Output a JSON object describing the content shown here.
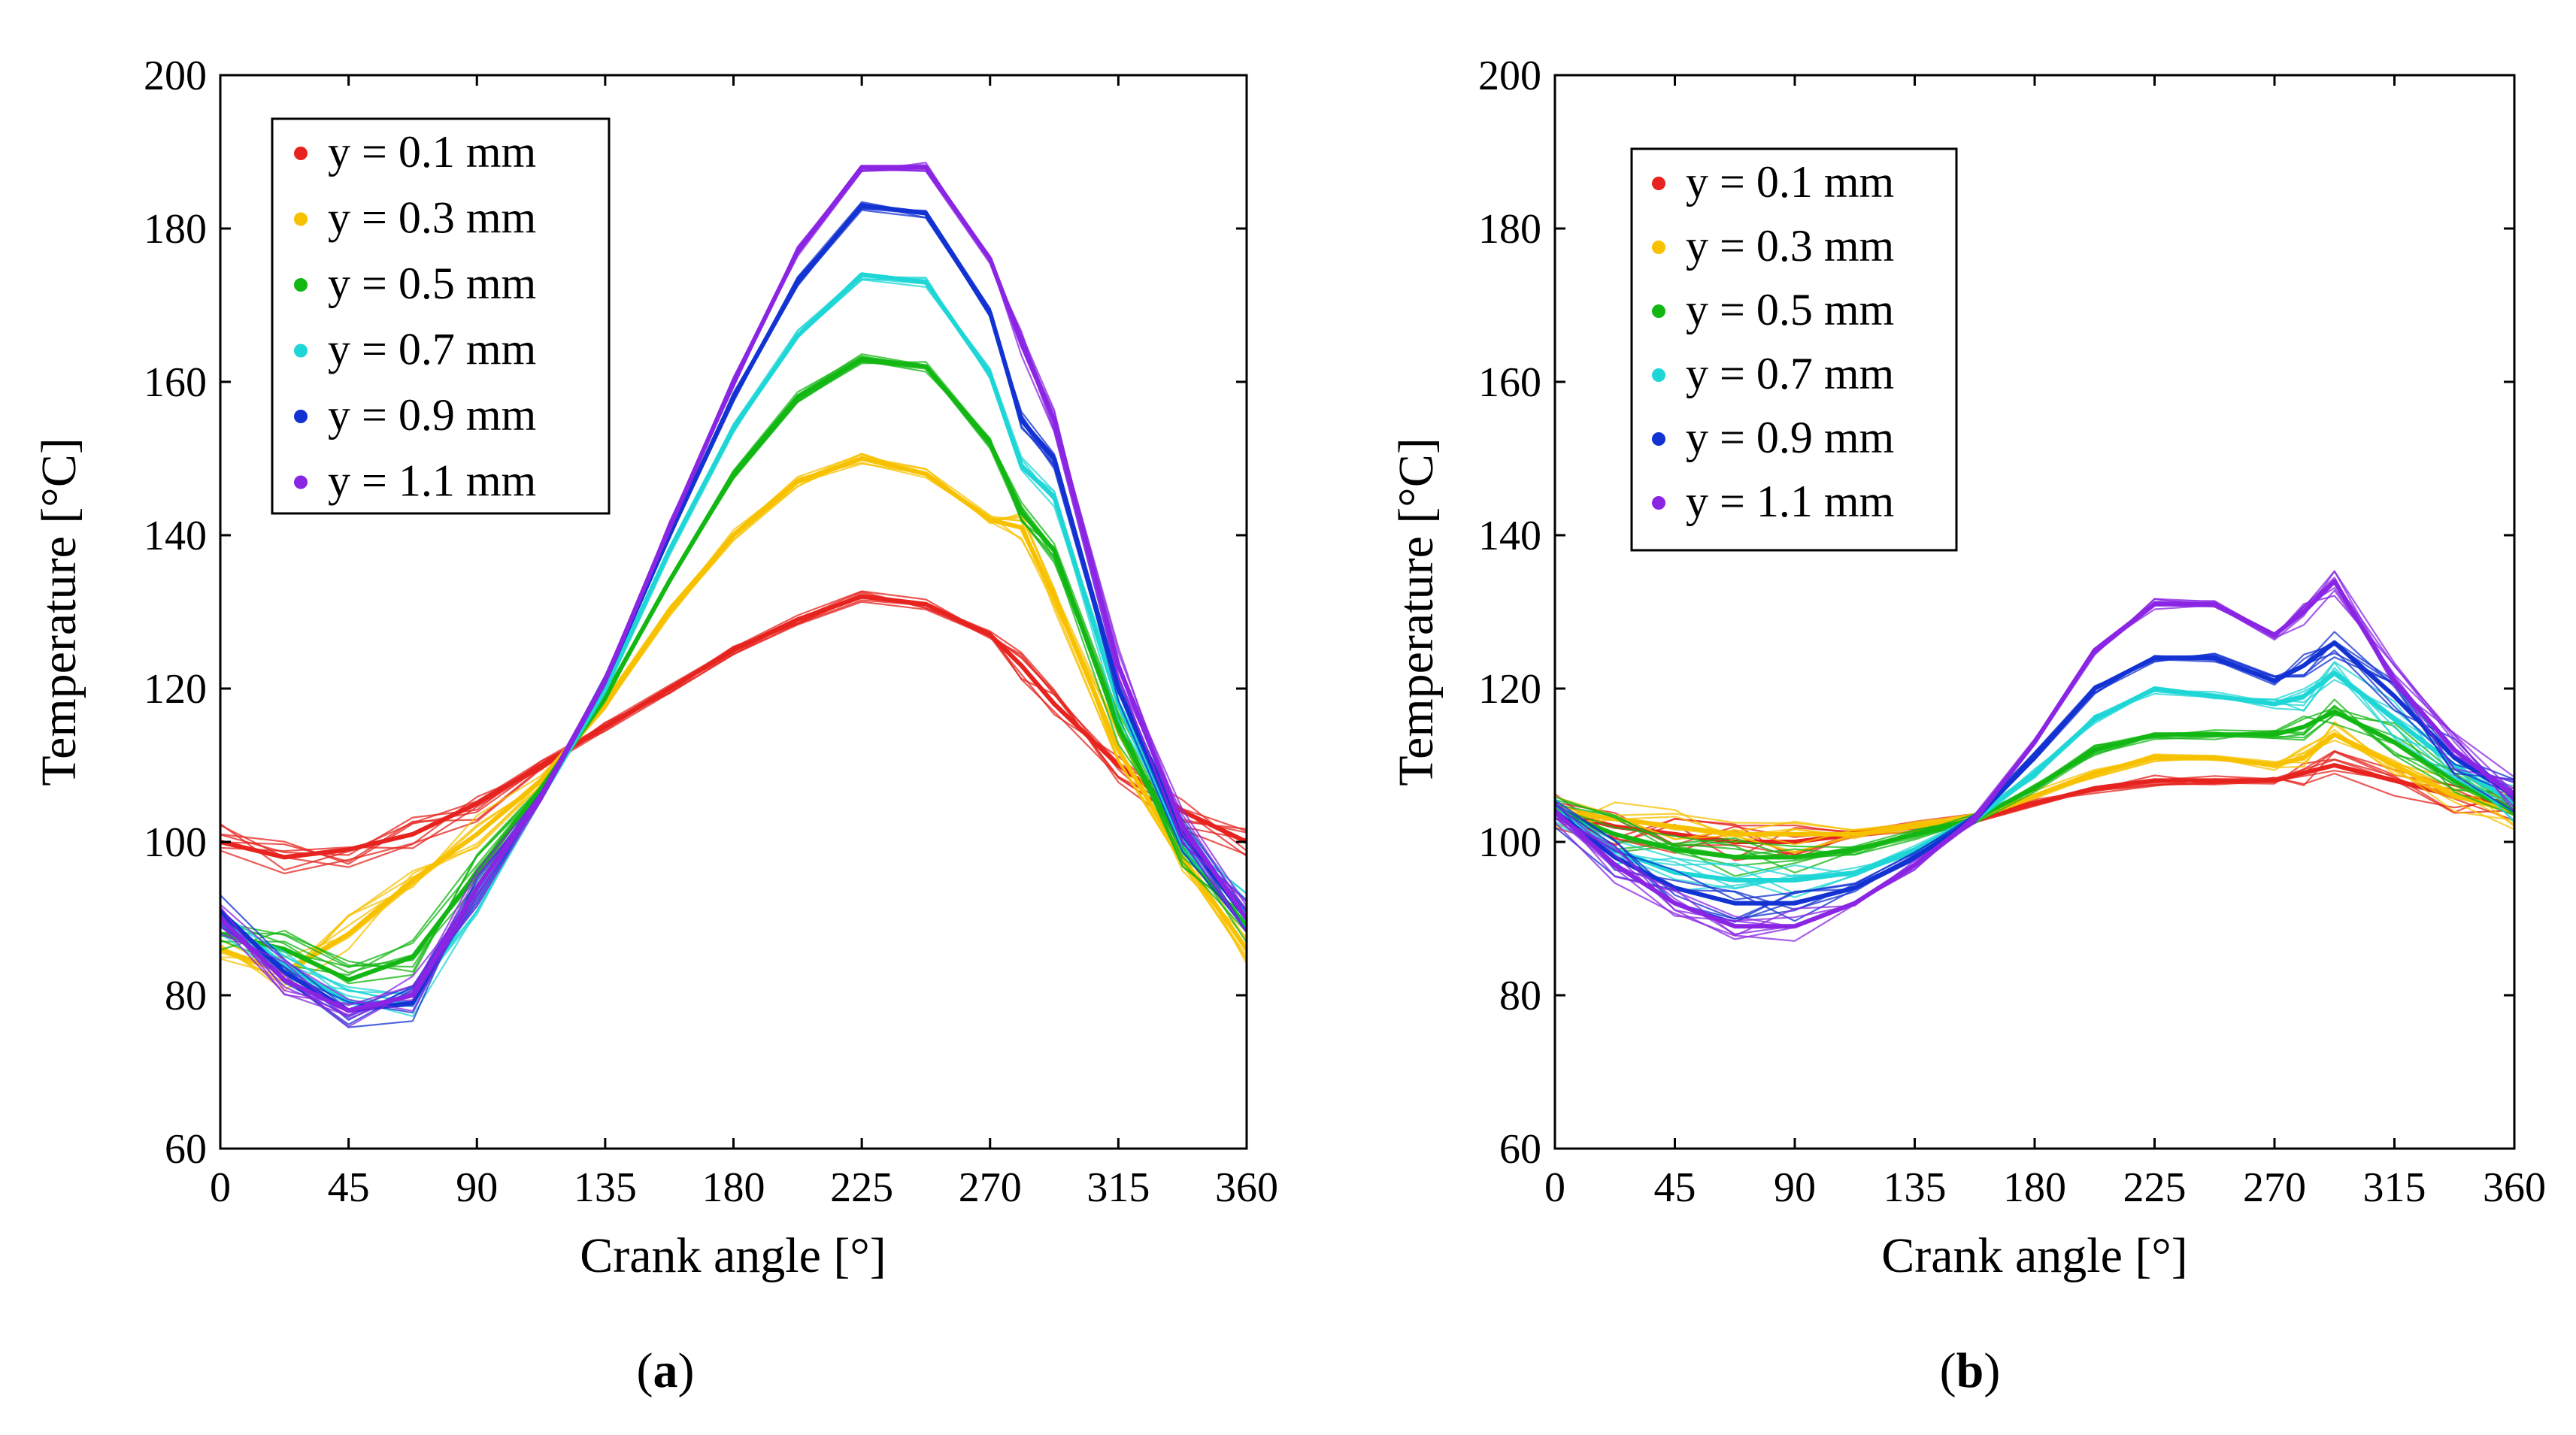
{
  "colors": {
    "y01": "#e6231e",
    "y03": "#f7c100",
    "y05": "#13b713",
    "y07": "#1fd6d6",
    "y09": "#1232d2",
    "y11": "#8a25e3"
  },
  "chart_data": [
    {
      "type": "line",
      "panel": "(a)",
      "panel_letter": "a",
      "xlabel": "Crank angle [°]",
      "ylabel": "Temperature [°C]",
      "xlim": [
        0,
        360
      ],
      "ylim": [
        60,
        200
      ],
      "xticks": [
        "0",
        "45",
        "90",
        "135",
        "180",
        "225",
        "270",
        "315",
        "360"
      ],
      "yticks": [
        "60",
        "80",
        "100",
        "120",
        "140",
        "160",
        "180",
        "200"
      ],
      "legend": [
        "y = 0.1 mm",
        "y = 0.3 mm",
        "y = 0.5 mm",
        "y = 0.7 mm",
        "y = 0.9 mm",
        "y = 1.1 mm"
      ],
      "legend_position": "top-left",
      "x": [
        0,
        22.5,
        45,
        67.5,
        90,
        112.5,
        135,
        157.5,
        180,
        202.5,
        225,
        247.5,
        270,
        281,
        292.5,
        315,
        337.5,
        360
      ],
      "series": [
        {
          "name": "y = 0.1 mm",
          "color": "#e6231e",
          "values": [
            100,
            98,
            99,
            101,
            105,
            110,
            115,
            120,
            125,
            129,
            132,
            131,
            127,
            123,
            118,
            110,
            104,
            100
          ]
        },
        {
          "name": "y = 0.3 mm",
          "color": "#f7c100",
          "values": [
            86,
            83,
            88,
            95,
            101,
            108,
            118,
            130,
            140,
            147,
            150,
            148,
            142,
            141,
            132,
            112,
            98,
            86
          ]
        },
        {
          "name": "y = 0.5 mm",
          "color": "#13b713",
          "values": [
            88,
            86,
            82,
            85,
            96,
            107,
            119,
            134,
            148,
            158,
            163,
            162,
            152,
            143,
            138,
            115,
            99,
            89
          ]
        },
        {
          "name": "y = 0.7 mm",
          "color": "#1fd6d6",
          "values": [
            90,
            84,
            79,
            79,
            93,
            106,
            120,
            138,
            154,
            166,
            174,
            173,
            161,
            149,
            145,
            118,
            100,
            91
          ]
        },
        {
          "name": "y = 0.9 mm",
          "color": "#1232d2",
          "values": [
            91,
            83,
            78,
            79,
            94,
            106,
            121,
            140,
            158,
            173,
            183,
            182,
            169,
            155,
            150,
            120,
            101,
            90
          ]
        },
        {
          "name": "y = 1.1 mm",
          "color": "#8a25e3",
          "values": [
            90,
            82,
            78,
            80,
            94,
            106,
            121,
            141,
            160,
            177,
            188,
            188,
            176,
            165,
            155,
            123,
            102,
            90
          ]
        }
      ]
    },
    {
      "type": "line",
      "panel": "(b)",
      "panel_letter": "b",
      "xlabel": "Crank angle [°]",
      "ylabel": "Temperature [°C]",
      "xlim": [
        0,
        360
      ],
      "ylim": [
        60,
        200
      ],
      "xticks": [
        "0",
        "45",
        "90",
        "135",
        "180",
        "225",
        "270",
        "315",
        "360"
      ],
      "yticks": [
        "60",
        "80",
        "100",
        "120",
        "140",
        "160",
        "180",
        "200"
      ],
      "legend": [
        "y = 0.1 mm",
        "y = 0.3 mm",
        "y = 0.5 mm",
        "y = 0.7 mm",
        "y = 0.9 mm",
        "y = 1.1 mm"
      ],
      "legend_position": "top-left",
      "x": [
        0,
        22.5,
        45,
        67.5,
        90,
        112.5,
        135,
        157.5,
        180,
        202.5,
        225,
        247.5,
        270,
        281,
        292.5,
        315,
        337.5,
        360
      ],
      "series": [
        {
          "name": "y = 0.1 mm",
          "color": "#e6231e",
          "values": [
            104,
            102,
            101,
            100,
            100,
            101,
            102,
            103,
            105,
            107,
            108,
            108,
            108,
            109,
            110,
            108,
            106,
            105
          ]
        },
        {
          "name": "y = 0.3 mm",
          "color": "#f7c100",
          "values": [
            104,
            103,
            102,
            101,
            101,
            101,
            102,
            103,
            106,
            109,
            111,
            111,
            110,
            111,
            114,
            110,
            106,
            104
          ]
        },
        {
          "name": "y = 0.5 mm",
          "color": "#13b713",
          "values": [
            104,
            101,
            99,
            98,
            98,
            99,
            101,
            103,
            107,
            112,
            114,
            114,
            114,
            115,
            117,
            113,
            108,
            104
          ]
        },
        {
          "name": "y = 0.7 mm",
          "color": "#1fd6d6",
          "values": [
            104,
            99,
            96,
            95,
            95,
            96,
            99,
            103,
            109,
            116,
            120,
            119,
            118,
            119,
            122,
            116,
            110,
            105
          ]
        },
        {
          "name": "y = 0.9 mm",
          "color": "#1232d2",
          "values": [
            104,
            98,
            94,
            92,
            92,
            94,
            98,
            103,
            111,
            120,
            124,
            124,
            121,
            123,
            126,
            119,
            111,
            106
          ]
        },
        {
          "name": "y = 1.1 mm",
          "color": "#8a25e3",
          "values": [
            104,
            97,
            92,
            89,
            89,
            92,
            97,
            103,
            113,
            125,
            131,
            131,
            127,
            130,
            134,
            121,
            112,
            106
          ]
        }
      ]
    }
  ]
}
